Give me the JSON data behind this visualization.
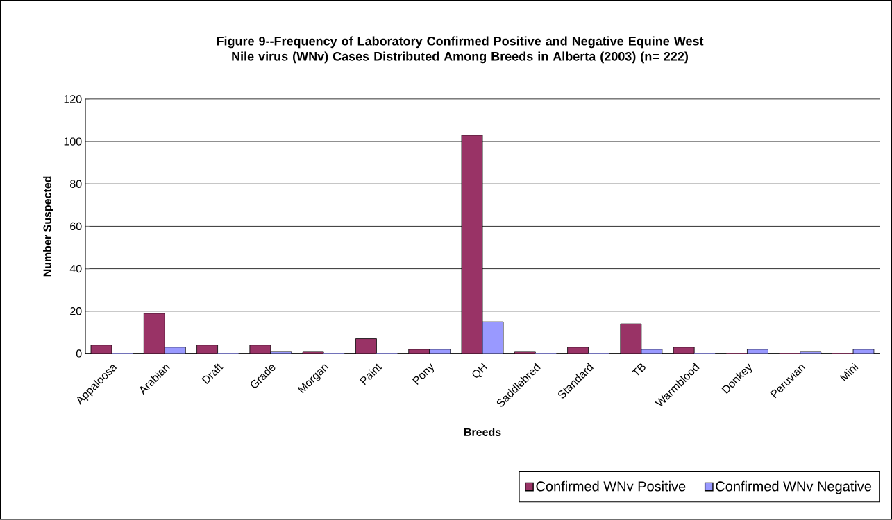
{
  "chart_data": {
    "type": "bar",
    "title": "Figure 9--Frequency of Laboratory Confirmed Positive and Negative Equine West Nile virus (WNv) Cases Distributed Among Breeds in Alberta (2003) (n= 222)",
    "xlabel": "Breeds",
    "ylabel": "Number Suspected",
    "categories": [
      "Appaloosa",
      "Arabian",
      "Draft",
      "Grade",
      "Morgan",
      "Paint",
      "Pony",
      "QH",
      "Saddlebred",
      "Standard",
      "TB",
      "Warmblood",
      "Donkey",
      "Peruvian",
      "Mini"
    ],
    "series": [
      {
        "name": "Confirmed WNv Positive",
        "color": "#993366",
        "values": [
          4,
          19,
          4,
          4,
          1,
          7,
          2,
          103,
          1,
          3,
          14,
          3,
          0,
          0,
          0
        ]
      },
      {
        "name": "Confirmed WNv Negative",
        "color": "#9999ff",
        "values": [
          0,
          3,
          0,
          1,
          0,
          0,
          2,
          15,
          0,
          0,
          2,
          0,
          2,
          1,
          2
        ]
      }
    ],
    "ylim": [
      0,
      120
    ],
    "yticks": [
      0,
      20,
      40,
      60,
      80,
      100,
      120
    ],
    "grid": "y",
    "legend": "bottom right"
  }
}
